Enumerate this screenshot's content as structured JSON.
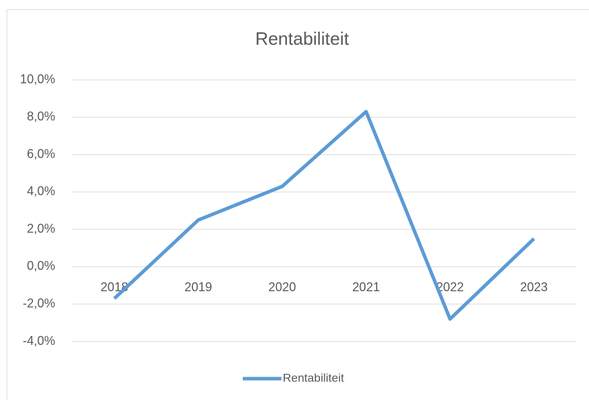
{
  "chart_data": {
    "type": "line",
    "title": "Rentabiliteit",
    "categories": [
      "2018",
      "2019",
      "2020",
      "2021",
      "2022",
      "2023"
    ],
    "series": [
      {
        "name": "Rentabiliteit",
        "color": "#5b9bd5",
        "values": [
          -1.7,
          2.5,
          4.3,
          8.3,
          -2.8,
          1.5
        ]
      }
    ],
    "ylim": [
      -4,
      10
    ],
    "yticks": [
      {
        "value": -4,
        "label": "-4,0%"
      },
      {
        "value": -2,
        "label": "-2,0%"
      },
      {
        "value": 0,
        "label": "0,0%"
      },
      {
        "value": 2,
        "label": "2,0%"
      },
      {
        "value": 4,
        "label": "4,0%"
      },
      {
        "value": 6,
        "label": "6,0%"
      },
      {
        "value": 8,
        "label": "8,0%"
      },
      {
        "value": 10,
        "label": "10,0%"
      }
    ],
    "grid": true,
    "legend": "bottom"
  }
}
